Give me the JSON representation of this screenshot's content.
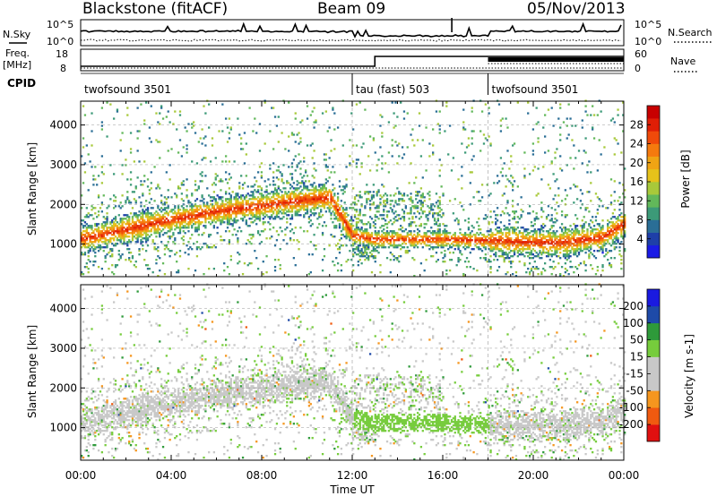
{
  "header": {
    "radar": "Blackstone (fitACF)",
    "beam": "Beam 09",
    "date": "05/Nov/2013"
  },
  "noise_panel": {
    "left_label": "N.Sky",
    "right_label": "N.Search",
    "y_top_tick": "10^5",
    "y_bottom_tick": "10^0"
  },
  "freq_panel": {
    "left_label_line1": "Freq.",
    "left_label_line2": "[MHz]",
    "left_ticks": [
      "18",
      "8"
    ],
    "right_label": "Nave",
    "right_ticks": [
      "60",
      "0"
    ]
  },
  "cpid_panel": {
    "label": "CPID",
    "segments": [
      {
        "label": "twofsound 3501",
        "start_hour": 0,
        "end_hour": 12
      },
      {
        "label": "tau (fast) 503",
        "start_hour": 12,
        "end_hour": 18
      },
      {
        "label": "twofsound 3501",
        "start_hour": 18,
        "end_hour": 24
      }
    ]
  },
  "chart_data": [
    {
      "type": "heatmap",
      "title": "",
      "xlabel": "Time UT",
      "ylabel": "Slant Range [km]",
      "quantity": "Power",
      "colorbar_label": "Power [dB]",
      "colorbar_ticks": [
        "28",
        "24",
        "20",
        "16",
        "12",
        "8",
        "4"
      ],
      "colorbar_range": [
        0,
        30
      ],
      "colorbar_colors": [
        "#1a1ae6",
        "#1e3fa8",
        "#2a6e96",
        "#3c9a78",
        "#62b85a",
        "#a8c93a",
        "#e6c21a",
        "#f0a414",
        "#f57a0e",
        "#f04a0a",
        "#e01e06",
        "#c80000"
      ],
      "xlim_hours": [
        0,
        24
      ],
      "xticks": [
        "00:00",
        "04:00",
        "08:00",
        "12:00",
        "16:00",
        "20:00",
        "00:00"
      ],
      "ylim_km": [
        180,
        4600
      ],
      "yticks": [
        "1000",
        "2000",
        "3000",
        "4000"
      ],
      "grid_lines_km": [
        1000,
        2000,
        3000,
        4000
      ],
      "main_echo_band_km": {
        "hours": [
          0,
          2,
          4,
          6,
          8,
          10,
          11,
          12,
          13,
          16,
          19,
          21,
          23,
          24
        ],
        "center": [
          1100,
          1350,
          1600,
          1800,
          1950,
          2100,
          2150,
          1200,
          1100,
          1100,
          1050,
          1000,
          1150,
          1500
        ]
      }
    },
    {
      "type": "heatmap",
      "title": "",
      "xlabel": "Time UT",
      "ylabel": "Slant Range [km]",
      "quantity": "Velocity",
      "colorbar_label": "Velocity [m s-1]",
      "colorbar_ticks": [
        "200",
        "100",
        "50",
        "15",
        "-15",
        "-50",
        "-100",
        "-200"
      ],
      "colorbar_range": [
        -250,
        250
      ],
      "colorbar_colors": [
        "#e01010",
        "#f05a10",
        "#f5961e",
        "#c8c8c8",
        "#c8c8c8",
        "#76cc3c",
        "#2e9a3a",
        "#1e4aa8",
        "#1a1ae0"
      ],
      "xlim_hours": [
        0,
        24
      ],
      "xticks": [
        "00:00",
        "04:00",
        "08:00",
        "12:00",
        "16:00",
        "20:00",
        "00:00"
      ],
      "ylim_km": [
        180,
        4600
      ],
      "yticks": [
        "1000",
        "2000",
        "3000",
        "4000"
      ],
      "grid_lines_km": [
        1000,
        2000,
        3000,
        4000
      ]
    }
  ],
  "x_axis": {
    "label": "Time UT",
    "ticks": [
      "00:00",
      "04:00",
      "08:00",
      "12:00",
      "16:00",
      "20:00",
      "00:00"
    ]
  }
}
